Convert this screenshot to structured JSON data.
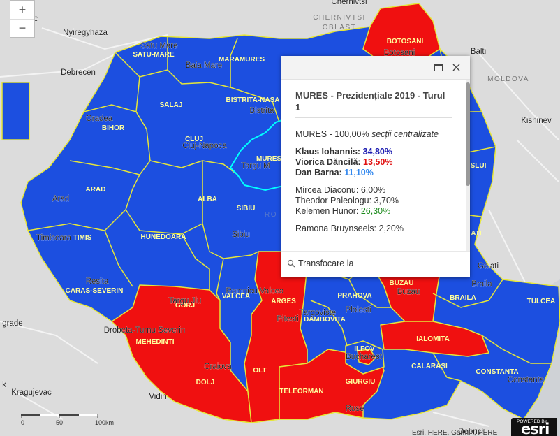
{
  "colors": {
    "blue": "#1c4fe0",
    "red": "#f01010",
    "border": "#e6e639",
    "selected": "#00ffff",
    "land": "#dcdcdc"
  },
  "zoom": {
    "in_label": "+",
    "out_label": "−"
  },
  "popup": {
    "title": "MURES - Prezidențiale 2019 - Turul 1",
    "county_link": "MURES",
    "county_suffix": " - 100,00% ",
    "centralized_note": "secții centralizate",
    "results": [
      {
        "name": "Klaus Iohannis:",
        "value": "34,80%",
        "color": "#1a1ab0",
        "bold": true
      },
      {
        "name": "Viorica Dăncilă:",
        "value": "13,50%",
        "color": "#e01010",
        "bold": true
      },
      {
        "name": "Dan Barna:",
        "value": "11,10%",
        "color": "#3388ee",
        "bold": true
      },
      {
        "name": "Mircea Diaconu:",
        "value": "6,00%",
        "color": "#333333",
        "bold": false
      },
      {
        "name": "Theodor Paleologu:",
        "value": "3,70%",
        "color": "#333333",
        "bold": false
      },
      {
        "name": "Kelemen Hunor:",
        "value": "26,30%",
        "color": "#1a8a1a",
        "bold": false
      },
      {
        "name": "Ramona Bruynseels:",
        "value": "2,20%",
        "color": "#333333",
        "bold": false
      }
    ],
    "zoom_to_label": "Transfocare la",
    "maximize_icon": "maximize-icon",
    "close_icon": "close-icon"
  },
  "scale": {
    "labels": [
      "0",
      "50",
      "100km"
    ]
  },
  "esri": {
    "powered": "POWERED BY",
    "logo": "esri"
  },
  "attribution": "Esri, HERE, Garmin, HERE",
  "counties": [
    {
      "id": "botosani",
      "label": "BOTOSANI",
      "won": "red"
    },
    {
      "id": "satu-mare",
      "label": "SATU-MARE",
      "won": "blue"
    },
    {
      "id": "maramures",
      "label": "MARAMURES",
      "won": "blue"
    },
    {
      "id": "salaj",
      "label": "SALAJ",
      "won": "blue"
    },
    {
      "id": "bistrita",
      "label": "BISTRITA-NASA",
      "won": "blue"
    },
    {
      "id": "bihor",
      "label": "BIHOR",
      "won": "blue"
    },
    {
      "id": "cluj",
      "label": "CLUJ",
      "won": "blue"
    },
    {
      "id": "mures",
      "label": "MURES",
      "won": "blue"
    },
    {
      "id": "arad",
      "label": "ARAD",
      "won": "blue"
    },
    {
      "id": "alba",
      "label": "ALBA",
      "won": "blue"
    },
    {
      "id": "timis",
      "label": "TIMIS",
      "won": "blue"
    },
    {
      "id": "hunedoara",
      "label": "HUNEDOARA",
      "won": "blue"
    },
    {
      "id": "sibiu",
      "label": "SIBIU",
      "won": "blue"
    },
    {
      "id": "caras",
      "label": "CARAS-SEVERIN",
      "won": "blue"
    },
    {
      "id": "gorj",
      "label": "GORJ",
      "won": "red"
    },
    {
      "id": "valcea",
      "label": "VALCEA",
      "won": "blue"
    },
    {
      "id": "arges",
      "label": "ARGES",
      "won": "red"
    },
    {
      "id": "dambovita",
      "label": "DAMBOVITA",
      "won": "blue"
    },
    {
      "id": "prahova",
      "label": "PRAHOVA",
      "won": "blue"
    },
    {
      "id": "buzau",
      "label": "BUZAU",
      "won": "red"
    },
    {
      "id": "braila",
      "label": "BRAILA",
      "won": "blue"
    },
    {
      "id": "tulcea",
      "label": "TULCEA",
      "won": "blue"
    },
    {
      "id": "mehedinti",
      "label": "MEHEDINTI",
      "won": "red"
    },
    {
      "id": "dolj",
      "label": "DOLJ",
      "won": "red"
    },
    {
      "id": "olt",
      "label": "OLT",
      "won": "red"
    },
    {
      "id": "teleorman",
      "label": "TELEORMAN",
      "won": "red"
    },
    {
      "id": "giurgiu",
      "label": "GIURGIU",
      "won": "red"
    },
    {
      "id": "ilfov",
      "label": "ILFOV",
      "won": "blue"
    },
    {
      "id": "ialomita",
      "label": "IALOMITA",
      "won": "red"
    },
    {
      "id": "calarasi",
      "label": "CALARASI",
      "won": "blue"
    },
    {
      "id": "constanta",
      "label": "CONSTANTA",
      "won": "blue"
    },
    {
      "id": "slui",
      "label": "SLUI",
      "won": "blue"
    },
    {
      "id": "ati",
      "label": "ATI",
      "won": "blue"
    }
  ],
  "cities": [
    "Nyiregyhaza",
    "Satu Mare",
    "Baia Mare",
    "Debrecen",
    "Oradea",
    "Cluj-Napoca",
    "Bistrita",
    "Targu M",
    "Arad",
    "Timisoara",
    "Sibiu",
    "Resita",
    "Targu Jiu",
    "Ramnicu Valcea",
    "Pitesti",
    "Targoviste",
    "Ploiesti",
    "Buzau",
    "Braila",
    "Galati",
    "Drobeta-Turnu Severin",
    "Craiova",
    "Bucharest",
    "Ruse",
    "Vidin",
    "Kragujevac",
    "Constanta",
    "Botosani",
    "Balti",
    "Kishinev",
    "Chernivtsi",
    "Dobrich",
    "lc",
    "grade",
    "k"
  ],
  "regions": [
    "MOLDOVA",
    "CHERNIVTSI",
    "OBLAST",
    "RO"
  ]
}
